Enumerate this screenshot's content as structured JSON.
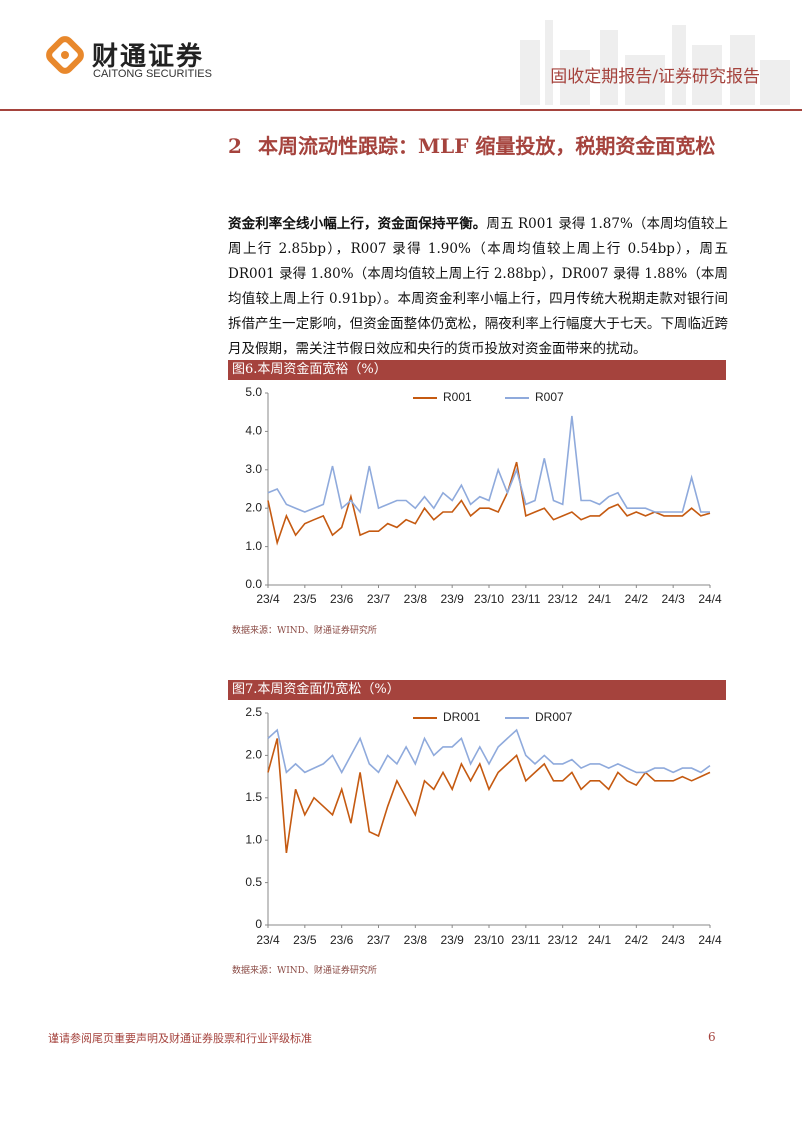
{
  "header": {
    "logo_cn": "财通证券",
    "logo_en": "CAITONG SECURITIES",
    "report_type": "固收定期报告/证券研究报告"
  },
  "section": {
    "number": "2",
    "title": "本周流动性跟踪：MLF 缩量投放，税期资金面宽松"
  },
  "paragraph": {
    "lead": "资金利率全线小幅上行，资金面保持平衡。",
    "body": "周五 R001 录得 1.87%（本周均值较上周上行 2.85bp），R007 录得 1.90%（本周均值较上周上行 0.54bp），周五 DR001 录得 1.80%（本周均值较上周上行 2.88bp），DR007 录得 1.88%（本周均值较上周上行 0.91bp）。本周资金利率小幅上行，四月传统大税期走款对银行间拆借产生一定影响，但资金面整体仍宽松，隔夜利率上行幅度大于七天。下周临近跨月及假期，需关注节假日效应和央行的货币投放对资金面带来的扰动。"
  },
  "chart_data": [
    {
      "type": "line",
      "title": "图6.本周资金面宽裕（%）",
      "source": "数据来源：WIND、财通证券研究所",
      "categories": [
        "23/4",
        null,
        null,
        null,
        "23/5",
        null,
        null,
        null,
        "23/6",
        null,
        null,
        null,
        "23/7",
        null,
        null,
        null,
        "23/8",
        null,
        null,
        null,
        "23/9",
        null,
        null,
        null,
        "23/10",
        null,
        null,
        null,
        "23/11",
        null,
        null,
        null,
        "23/12",
        null,
        null,
        null,
        "24/1",
        null,
        null,
        null,
        "24/2",
        null,
        null,
        null,
        "24/3",
        null,
        null,
        null,
        "24/4"
      ],
      "series": [
        {
          "name": "R001",
          "color": "#c55a11",
          "values": [
            2.2,
            1.1,
            1.8,
            1.3,
            1.6,
            1.7,
            1.8,
            1.3,
            1.5,
            2.3,
            1.3,
            1.4,
            1.4,
            1.6,
            1.5,
            1.7,
            1.6,
            2.0,
            1.7,
            1.9,
            1.9,
            2.2,
            1.8,
            2.0,
            2.0,
            1.9,
            2.4,
            3.2,
            1.8,
            1.9,
            2.0,
            1.7,
            1.8,
            1.9,
            1.7,
            1.8,
            1.8,
            2.0,
            2.1,
            1.8,
            1.9,
            1.8,
            1.9,
            1.8,
            1.8,
            1.8,
            2.0,
            1.8,
            1.87
          ]
        },
        {
          "name": "R007",
          "color": "#8faadc",
          "values": [
            2.4,
            2.5,
            2.1,
            2.0,
            1.9,
            2.0,
            2.1,
            3.1,
            2.0,
            2.2,
            1.9,
            3.1,
            2.0,
            2.1,
            2.2,
            2.2,
            2.0,
            2.3,
            2.0,
            2.4,
            2.2,
            2.6,
            2.1,
            2.3,
            2.2,
            3.0,
            2.4,
            3.0,
            2.1,
            2.2,
            3.3,
            2.2,
            2.1,
            4.4,
            2.2,
            2.2,
            2.1,
            2.3,
            2.4,
            2.0,
            2.0,
            2.0,
            1.9,
            1.9,
            1.9,
            1.9,
            2.8,
            1.9,
            1.9
          ]
        }
      ],
      "ylim": [
        0,
        5
      ],
      "yticks": [
        {
          "value": 0,
          "label": "0.0"
        },
        {
          "value": 1,
          "label": "1.0"
        },
        {
          "value": 2,
          "label": "2.0"
        },
        {
          "value": 3,
          "label": "3.0"
        },
        {
          "value": 4,
          "label": "4.0"
        },
        {
          "value": 5,
          "label": "5.0"
        }
      ]
    },
    {
      "type": "line",
      "title": "图7.本周资金面仍宽松（%）",
      "source": "数据来源：WIND、财通证券研究所",
      "categories": [
        "23/4",
        null,
        null,
        null,
        "23/5",
        null,
        null,
        null,
        "23/6",
        null,
        null,
        null,
        "23/7",
        null,
        null,
        null,
        "23/8",
        null,
        null,
        null,
        "23/9",
        null,
        null,
        null,
        "23/10",
        null,
        null,
        null,
        "23/11",
        null,
        null,
        null,
        "23/12",
        null,
        null,
        null,
        "24/1",
        null,
        null,
        null,
        "24/2",
        null,
        null,
        null,
        "24/3",
        null,
        null,
        null,
        "24/4"
      ],
      "series": [
        {
          "name": "DR001",
          "color": "#c55a11",
          "values": [
            1.8,
            2.2,
            0.85,
            1.6,
            1.3,
            1.5,
            1.4,
            1.3,
            1.6,
            1.2,
            1.8,
            1.1,
            1.05,
            1.4,
            1.7,
            1.5,
            1.3,
            1.7,
            1.6,
            1.8,
            1.6,
            1.9,
            1.7,
            1.9,
            1.6,
            1.8,
            1.9,
            2.0,
            1.7,
            1.8,
            1.9,
            1.7,
            1.7,
            1.8,
            1.6,
            1.7,
            1.7,
            1.6,
            1.8,
            1.7,
            1.65,
            1.8,
            1.7,
            1.7,
            1.7,
            1.75,
            1.7,
            1.75,
            1.8
          ]
        },
        {
          "name": "DR007",
          "color": "#8faadc",
          "values": [
            2.2,
            2.3,
            1.8,
            1.9,
            1.8,
            1.85,
            1.9,
            2.0,
            1.8,
            2.0,
            2.2,
            1.9,
            1.8,
            2.0,
            1.9,
            2.1,
            1.9,
            2.2,
            2.0,
            2.1,
            2.1,
            2.2,
            1.9,
            2.1,
            1.9,
            2.1,
            2.2,
            2.3,
            2.0,
            1.9,
            2.0,
            1.9,
            1.9,
            1.95,
            1.85,
            1.9,
            1.9,
            1.85,
            1.9,
            1.85,
            1.8,
            1.8,
            1.85,
            1.85,
            1.8,
            1.85,
            1.85,
            1.8,
            1.88
          ]
        }
      ],
      "ylim": [
        0,
        2.5
      ],
      "yticks": [
        0,
        0.5,
        {
          "value": 1,
          "label": "1.0"
        },
        1.5,
        {
          "value": 2,
          "label": "2.0"
        },
        2.5
      ]
    }
  ],
  "footer": {
    "disclaimer": "谨请参阅尾页重要声明及财通证券股票和行业评级标准",
    "page": "6"
  }
}
